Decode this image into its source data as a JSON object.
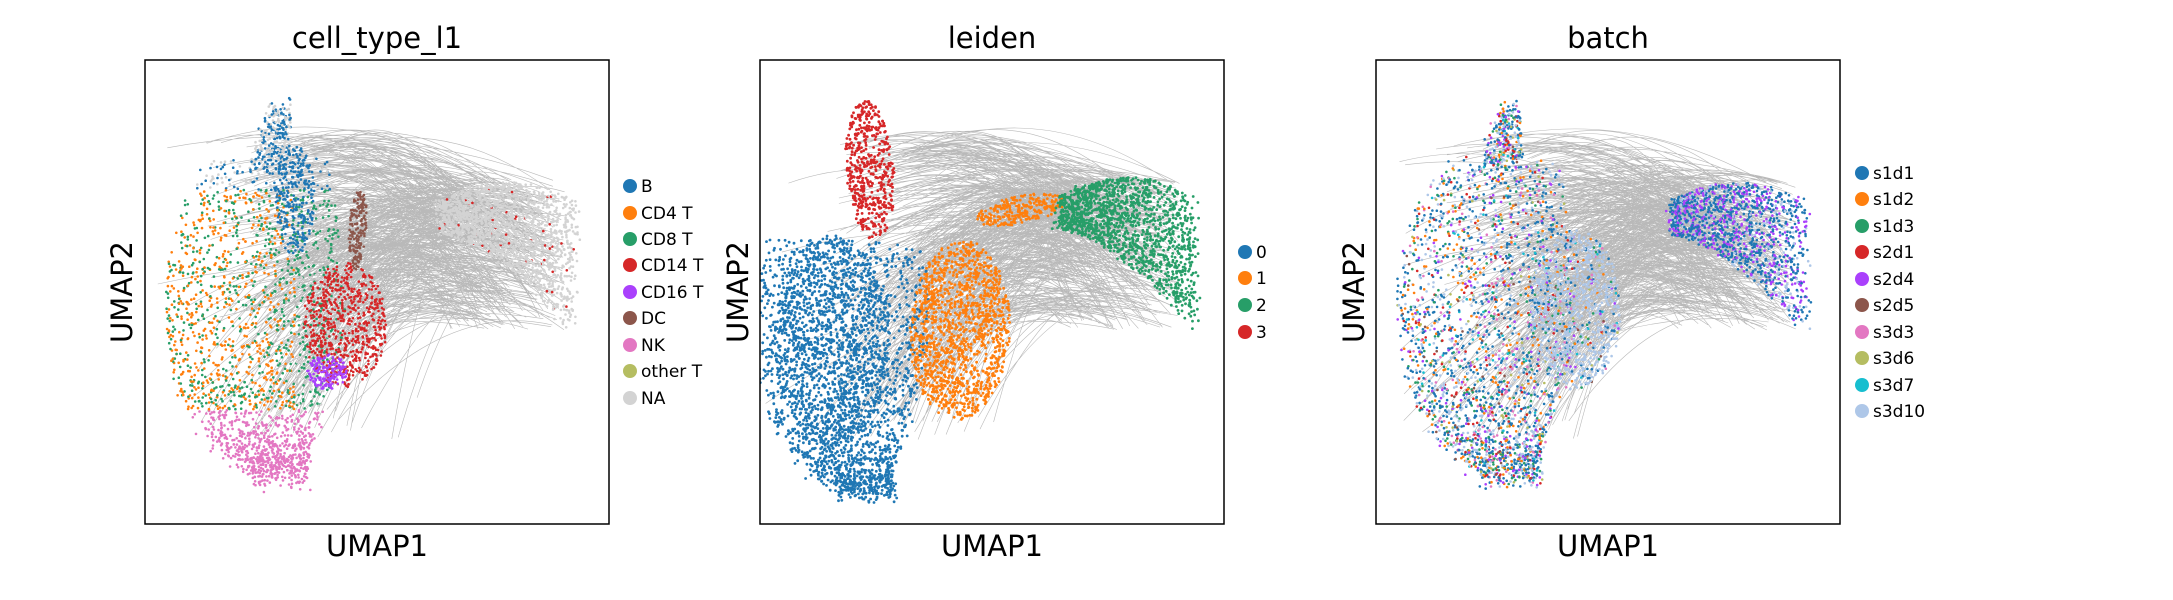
{
  "figure": {
    "panels": [
      {
        "title": "cell_type_l1",
        "xlabel": "UMAP1",
        "ylabel": "UMAP2",
        "legend": [
          {
            "label": "B",
            "color": "#1f77b4"
          },
          {
            "label": "CD4 T",
            "color": "#ff7f0e"
          },
          {
            "label": "CD8 T",
            "color": "#279e68"
          },
          {
            "label": "CD14 T",
            "color": "#d62728"
          },
          {
            "label": "CD16 T",
            "color": "#aa40fc"
          },
          {
            "label": "DC",
            "color": "#8c564b"
          },
          {
            "label": "NK",
            "color": "#e377c2"
          },
          {
            "label": "other T",
            "color": "#b5bd61"
          },
          {
            "label": "NA",
            "color": "#d3d3d3"
          }
        ]
      },
      {
        "title": "leiden",
        "xlabel": "UMAP1",
        "ylabel": "UMAP2",
        "legend": [
          {
            "label": "0",
            "color": "#1f77b4"
          },
          {
            "label": "1",
            "color": "#ff7f0e"
          },
          {
            "label": "2",
            "color": "#279e68"
          },
          {
            "label": "3",
            "color": "#d62728"
          }
        ]
      },
      {
        "title": "batch",
        "xlabel": "UMAP1",
        "ylabel": "UMAP2",
        "legend": [
          {
            "label": "s1d1",
            "color": "#1f77b4"
          },
          {
            "label": "s1d2",
            "color": "#ff7f0e"
          },
          {
            "label": "s1d3",
            "color": "#279e68"
          },
          {
            "label": "s2d1",
            "color": "#d62728"
          },
          {
            "label": "s2d4",
            "color": "#aa40fc"
          },
          {
            "label": "s2d5",
            "color": "#8c564b"
          },
          {
            "label": "s3d3",
            "color": "#e377c2"
          },
          {
            "label": "s3d6",
            "color": "#b5bd61"
          },
          {
            "label": "s3d7",
            "color": "#17becf"
          },
          {
            "label": "s3d10",
            "color": "#aec7e8"
          }
        ]
      }
    ]
  },
  "chart_data": [
    {
      "type": "scatter",
      "title": "cell_type_l1",
      "xlabel": "UMAP1",
      "ylabel": "UMAP2",
      "grid": false,
      "axis_ticks": false,
      "legend_position": "right",
      "edges_color": "#808080",
      "categories": [
        "B",
        "CD4 T",
        "CD8 T",
        "CD14 T",
        "CD16 T",
        "DC",
        "NK",
        "other T",
        "NA"
      ],
      "colors": [
        "#1f77b4",
        "#ff7f0e",
        "#279e68",
        "#d62728",
        "#aa40fc",
        "#8c564b",
        "#e377c2",
        "#b5bd61",
        "#d3d3d3"
      ]
    },
    {
      "type": "scatter",
      "title": "leiden",
      "xlabel": "UMAP1",
      "ylabel": "UMAP2",
      "grid": false,
      "axis_ticks": false,
      "legend_position": "right",
      "edges_color": "#808080",
      "categories": [
        "0",
        "1",
        "2",
        "3"
      ],
      "colors": [
        "#1f77b4",
        "#ff7f0e",
        "#279e68",
        "#d62728"
      ]
    },
    {
      "type": "scatter",
      "title": "batch",
      "xlabel": "UMAP1",
      "ylabel": "UMAP2",
      "grid": false,
      "axis_ticks": false,
      "legend_position": "right",
      "edges_color": "#808080",
      "categories": [
        "s1d1",
        "s1d2",
        "s1d3",
        "s2d1",
        "s2d4",
        "s2d5",
        "s3d3",
        "s3d6",
        "s3d7",
        "s3d10"
      ],
      "colors": [
        "#1f77b4",
        "#ff7f0e",
        "#279e68",
        "#d62728",
        "#aa40fc",
        "#8c564b",
        "#e377c2",
        "#b5bd61",
        "#17becf",
        "#aec7e8"
      ]
    }
  ]
}
